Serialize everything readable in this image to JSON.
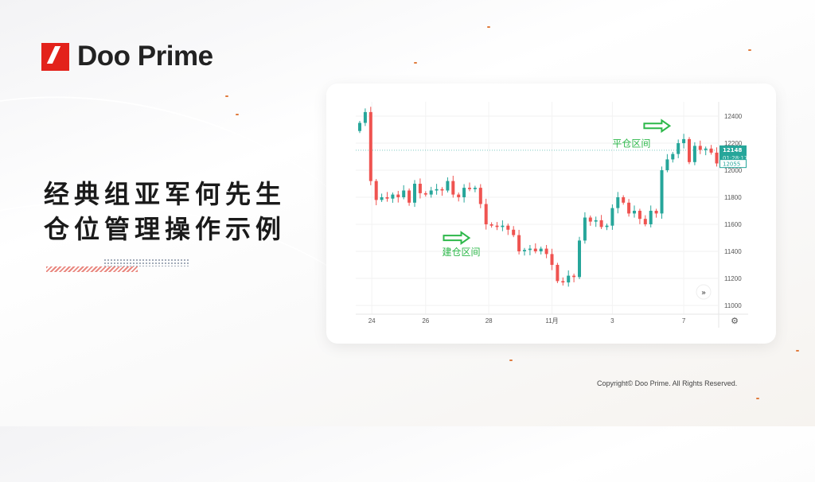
{
  "brand": {
    "name": "Doo Prime",
    "accent": "#e3221b"
  },
  "headline": {
    "line1": "经典组亚军何先生",
    "line2": "仓位管理操作示例"
  },
  "footer": {
    "copyright": "Copyright© Doo Prime. All Rights Reserved."
  },
  "chart_data": {
    "type": "candlestick",
    "y_ticks": [
      12400,
      12200,
      12000,
      11800,
      11600,
      11400,
      11200,
      11000
    ],
    "ylim": [
      10970,
      12500
    ],
    "x_ticks": [
      "24",
      "26",
      "28",
      "11月",
      "3",
      "7"
    ],
    "grid": true,
    "closes": [
      12350,
      12430,
      11920,
      11780,
      11800,
      11790,
      11820,
      11800,
      11850,
      11760,
      11900,
      11830,
      11820,
      11850,
      11860,
      11850,
      11920,
      11820,
      11800,
      11870,
      11860,
      11870,
      11750,
      11600,
      11590,
      11580,
      11590,
      11560,
      11520,
      11400,
      11410,
      11420,
      11400,
      11420,
      11380,
      11300,
      11180,
      11170,
      11220,
      11210,
      11480,
      11650,
      11620,
      11630,
      11580,
      11590,
      11720,
      11800,
      11760,
      11680,
      11700,
      11640,
      11600,
      11700,
      11680,
      12000,
      12080,
      12120,
      12200,
      12230,
      12060,
      12180,
      12150,
      12160,
      12130,
      12050
    ],
    "first_open": 12290,
    "current_price": {
      "price": 12148,
      "label": "12148",
      "countdown": "01:28:17"
    },
    "secondary_price": {
      "price": 12055,
      "label": "12055"
    },
    "colors": {
      "up": "#26a69a",
      "down": "#ef5350",
      "annotation": "#2db84a"
    },
    "annotations": [
      {
        "text": "平仓区间",
        "price": 12175,
        "candle": 46
      },
      {
        "text": "建仓区间",
        "price": 11370,
        "candle": 15
      }
    ]
  }
}
